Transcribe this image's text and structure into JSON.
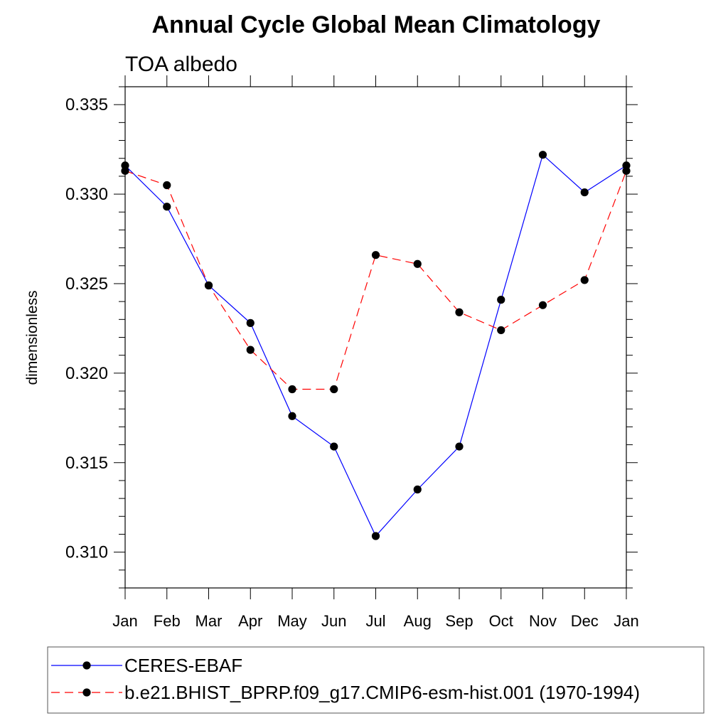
{
  "chart_data": {
    "type": "line",
    "title": "Annual Cycle Global Mean Climatology",
    "subtitle": "TOA albedo",
    "xlabel": "",
    "ylabel": "dimensionless",
    "categories": [
      "Jan",
      "Feb",
      "Mar",
      "Apr",
      "May",
      "Jun",
      "Jul",
      "Aug",
      "Sep",
      "Oct",
      "Nov",
      "Dec",
      "Jan"
    ],
    "ylim": [
      0.308,
      0.336
    ],
    "yticks": [
      0.31,
      0.315,
      0.32,
      0.325,
      0.33,
      0.335
    ],
    "ytick_labels": [
      "0.310",
      "0.315",
      "0.320",
      "0.325",
      "0.330",
      "0.335"
    ],
    "grid": false,
    "series": [
      {
        "name": "CERES-EBAF",
        "color": "#0000ff",
        "dash": "solid",
        "marker": "circle",
        "values": [
          0.3316,
          0.3293,
          0.3249,
          0.3228,
          0.3176,
          0.3159,
          0.3109,
          0.3135,
          0.3159,
          0.3241,
          0.3322,
          0.3301,
          0.3316
        ]
      },
      {
        "name": "b.e21.BHIST_BPRP.f09_g17.CMIP6-esm-hist.001 (1970-1994)",
        "color": "#ff0000",
        "dash": "dashed",
        "marker": "circle",
        "values": [
          0.3313,
          0.3305,
          0.3249,
          0.3213,
          0.3191,
          0.3191,
          0.3266,
          0.3261,
          0.3234,
          0.3224,
          0.3238,
          0.3252,
          0.3313
        ]
      }
    ],
    "legend": {
      "placement": "bottom",
      "entries": [
        "CERES-EBAF",
        "b.e21.BHIST_BPRP.f09_g17.CMIP6-esm-hist.001 (1970-1994)"
      ]
    }
  }
}
